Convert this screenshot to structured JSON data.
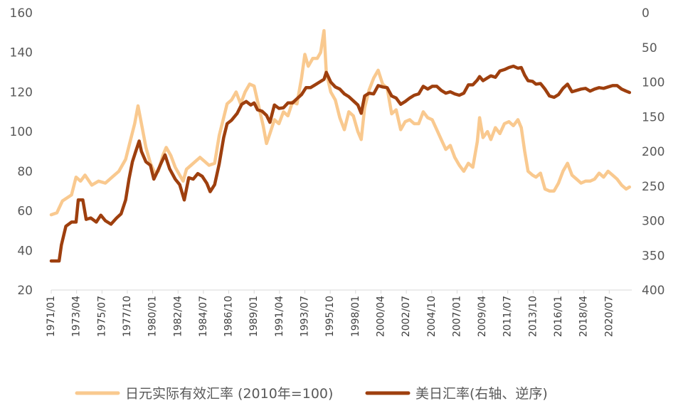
{
  "chart_data": {
    "type": "line",
    "title": "",
    "xlabel": "",
    "ylabel": "",
    "y2label": "",
    "ylim": [
      20,
      160
    ],
    "y2lim": [
      0,
      400
    ],
    "y2_inverted": true,
    "yticks": [
      "160",
      "140",
      "120",
      "100",
      "80",
      "60",
      "40",
      "20"
    ],
    "y2ticks": [
      "0",
      "50",
      "100",
      "150",
      "200",
      "250",
      "300",
      "350",
      "400"
    ],
    "xlim": [
      1971.0,
      2022.5
    ],
    "xtick_labels": [
      "1971/01",
      "1973/04",
      "1975/07",
      "1977/10",
      "1980/01",
      "1982/04",
      "1984/07",
      "1986/10",
      "1989/01",
      "1991/04",
      "1993/07",
      "1995/10",
      "1998/01",
      "2000/04",
      "2002/07",
      "2004/10",
      "2007/01",
      "2009/04",
      "2011/07",
      "2013/10",
      "2016/01",
      "2018/04",
      "2020/07"
    ],
    "grid": false,
    "legend_position": "bottom",
    "series": [
      {
        "name": "日元实际有效汇率 (2010年=100)",
        "axis": "left",
        "color": "#F9C98F",
        "points": [
          [
            1971.0,
            58
          ],
          [
            1971.5,
            59
          ],
          [
            1972.0,
            65
          ],
          [
            1972.8,
            68
          ],
          [
            1973.2,
            77
          ],
          [
            1973.6,
            75
          ],
          [
            1974.0,
            78
          ],
          [
            1974.6,
            73
          ],
          [
            1975.2,
            75
          ],
          [
            1975.8,
            74
          ],
          [
            1976.4,
            77
          ],
          [
            1977.0,
            80
          ],
          [
            1977.6,
            86
          ],
          [
            1978.0,
            95
          ],
          [
            1978.4,
            104
          ],
          [
            1978.7,
            113
          ],
          [
            1979.0,
            104
          ],
          [
            1979.4,
            92
          ],
          [
            1979.8,
            84
          ],
          [
            1980.2,
            79
          ],
          [
            1980.5,
            80
          ],
          [
            1980.9,
            88
          ],
          [
            1981.2,
            92
          ],
          [
            1981.6,
            88
          ],
          [
            1982.0,
            82
          ],
          [
            1982.4,
            78
          ],
          [
            1982.7,
            75
          ],
          [
            1983.0,
            81
          ],
          [
            1983.4,
            83
          ],
          [
            1983.8,
            85
          ],
          [
            1984.2,
            87
          ],
          [
            1984.6,
            85
          ],
          [
            1985.0,
            83
          ],
          [
            1985.5,
            84
          ],
          [
            1985.9,
            98
          ],
          [
            1986.3,
            107
          ],
          [
            1986.6,
            114
          ],
          [
            1987.0,
            116
          ],
          [
            1987.4,
            120
          ],
          [
            1987.8,
            114
          ],
          [
            1988.2,
            120
          ],
          [
            1988.6,
            124
          ],
          [
            1989.0,
            123
          ],
          [
            1989.4,
            113
          ],
          [
            1989.8,
            103
          ],
          [
            1990.1,
            94
          ],
          [
            1990.4,
            99
          ],
          [
            1990.8,
            106
          ],
          [
            1991.2,
            104
          ],
          [
            1991.6,
            110
          ],
          [
            1992.0,
            108
          ],
          [
            1992.4,
            115
          ],
          [
            1992.8,
            114
          ],
          [
            1993.2,
            127
          ],
          [
            1993.5,
            139
          ],
          [
            1993.8,
            133
          ],
          [
            1994.2,
            137
          ],
          [
            1994.6,
            137
          ],
          [
            1994.9,
            140
          ],
          [
            1995.2,
            151
          ],
          [
            1995.4,
            130
          ],
          [
            1995.8,
            120
          ],
          [
            1996.2,
            116
          ],
          [
            1996.6,
            107
          ],
          [
            1997.0,
            101
          ],
          [
            1997.4,
            110
          ],
          [
            1997.8,
            108
          ],
          [
            1998.2,
            100
          ],
          [
            1998.5,
            96
          ],
          [
            1998.8,
            112
          ],
          [
            1999.2,
            121
          ],
          [
            1999.6,
            127
          ],
          [
            2000.0,
            131
          ],
          [
            2000.4,
            124
          ],
          [
            2000.8,
            122
          ],
          [
            2001.2,
            109
          ],
          [
            2001.6,
            111
          ],
          [
            2002.0,
            101
          ],
          [
            2002.4,
            105
          ],
          [
            2002.8,
            106
          ],
          [
            2003.2,
            104
          ],
          [
            2003.6,
            104
          ],
          [
            2004.0,
            110
          ],
          [
            2004.4,
            107
          ],
          [
            2004.8,
            106
          ],
          [
            2005.2,
            101
          ],
          [
            2005.6,
            96
          ],
          [
            2006.0,
            91
          ],
          [
            2006.4,
            93
          ],
          [
            2006.8,
            87
          ],
          [
            2007.2,
            83
          ],
          [
            2007.6,
            80
          ],
          [
            2008.0,
            84
          ],
          [
            2008.4,
            82
          ],
          [
            2008.8,
            95
          ],
          [
            2009.0,
            107
          ],
          [
            2009.3,
            97
          ],
          [
            2009.7,
            100
          ],
          [
            2010.0,
            96
          ],
          [
            2010.4,
            102
          ],
          [
            2010.8,
            99
          ],
          [
            2011.2,
            104
          ],
          [
            2011.6,
            105
          ],
          [
            2012.0,
            103
          ],
          [
            2012.4,
            106
          ],
          [
            2012.7,
            102
          ],
          [
            2013.0,
            90
          ],
          [
            2013.3,
            80
          ],
          [
            2013.7,
            78
          ],
          [
            2014.0,
            77
          ],
          [
            2014.4,
            79
          ],
          [
            2014.8,
            71
          ],
          [
            2015.2,
            70
          ],
          [
            2015.6,
            70
          ],
          [
            2016.0,
            74
          ],
          [
            2016.4,
            80
          ],
          [
            2016.8,
            84
          ],
          [
            2017.2,
            78
          ],
          [
            2017.6,
            76
          ],
          [
            2018.0,
            74
          ],
          [
            2018.4,
            75
          ],
          [
            2018.8,
            75
          ],
          [
            2019.2,
            76
          ],
          [
            2019.6,
            79
          ],
          [
            2020.0,
            77
          ],
          [
            2020.4,
            80
          ],
          [
            2020.8,
            78
          ],
          [
            2021.2,
            76
          ],
          [
            2021.6,
            73
          ],
          [
            2022.0,
            71
          ],
          [
            2022.3,
            72
          ]
        ]
      },
      {
        "name": "美日汇率(右轴、逆序)",
        "axis": "right",
        "color": "#9E3F0E",
        "points": [
          [
            1971.0,
            358
          ],
          [
            1971.7,
            358
          ],
          [
            1971.9,
            335
          ],
          [
            1972.3,
            308
          ],
          [
            1972.8,
            302
          ],
          [
            1973.2,
            302
          ],
          [
            1973.4,
            270
          ],
          [
            1973.8,
            270
          ],
          [
            1974.1,
            298
          ],
          [
            1974.5,
            296
          ],
          [
            1975.0,
            302
          ],
          [
            1975.4,
            292
          ],
          [
            1975.8,
            300
          ],
          [
            1976.3,
            305
          ],
          [
            1976.8,
            296
          ],
          [
            1977.2,
            290
          ],
          [
            1977.6,
            270
          ],
          [
            1977.9,
            240
          ],
          [
            1978.2,
            215
          ],
          [
            1978.5,
            200
          ],
          [
            1978.8,
            185
          ],
          [
            1979.0,
            200
          ],
          [
            1979.4,
            215
          ],
          [
            1979.8,
            220
          ],
          [
            1980.1,
            240
          ],
          [
            1980.4,
            230
          ],
          [
            1980.8,
            215
          ],
          [
            1981.1,
            205
          ],
          [
            1981.5,
            225
          ],
          [
            1982.0,
            240
          ],
          [
            1982.4,
            248
          ],
          [
            1982.8,
            270
          ],
          [
            1983.2,
            238
          ],
          [
            1983.6,
            240
          ],
          [
            1984.0,
            232
          ],
          [
            1984.4,
            236
          ],
          [
            1984.8,
            246
          ],
          [
            1985.1,
            258
          ],
          [
            1985.5,
            248
          ],
          [
            1985.9,
            218
          ],
          [
            1986.3,
            180
          ],
          [
            1986.6,
            160
          ],
          [
            1987.0,
            155
          ],
          [
            1987.5,
            145
          ],
          [
            1987.9,
            132
          ],
          [
            1988.3,
            128
          ],
          [
            1988.7,
            133
          ],
          [
            1989.0,
            130
          ],
          [
            1989.3,
            140
          ],
          [
            1989.7,
            142
          ],
          [
            1990.1,
            148
          ],
          [
            1990.4,
            158
          ],
          [
            1990.8,
            133
          ],
          [
            1991.2,
            138
          ],
          [
            1991.6,
            137
          ],
          [
            1992.0,
            130
          ],
          [
            1992.4,
            130
          ],
          [
            1992.8,
            124
          ],
          [
            1993.2,
            118
          ],
          [
            1993.6,
            108
          ],
          [
            1994.0,
            108
          ],
          [
            1994.4,
            104
          ],
          [
            1994.8,
            100
          ],
          [
            1995.2,
            96
          ],
          [
            1995.4,
            86
          ],
          [
            1995.8,
            100
          ],
          [
            1996.2,
            107
          ],
          [
            1996.6,
            110
          ],
          [
            1997.0,
            117
          ],
          [
            1997.4,
            121
          ],
          [
            1997.8,
            127
          ],
          [
            1998.2,
            133
          ],
          [
            1998.5,
            145
          ],
          [
            1998.8,
            120
          ],
          [
            1999.2,
            116
          ],
          [
            1999.6,
            117
          ],
          [
            2000.0,
            105
          ],
          [
            2000.4,
            107
          ],
          [
            2000.8,
            108
          ],
          [
            2001.2,
            120
          ],
          [
            2001.6,
            123
          ],
          [
            2002.0,
            132
          ],
          [
            2002.4,
            128
          ],
          [
            2002.8,
            123
          ],
          [
            2003.2,
            119
          ],
          [
            2003.6,
            117
          ],
          [
            2004.0,
            106
          ],
          [
            2004.4,
            110
          ],
          [
            2004.8,
            106
          ],
          [
            2005.2,
            106
          ],
          [
            2005.6,
            112
          ],
          [
            2006.0,
            116
          ],
          [
            2006.4,
            114
          ],
          [
            2006.8,
            117
          ],
          [
            2007.2,
            119
          ],
          [
            2007.6,
            116
          ],
          [
            2008.0,
            104
          ],
          [
            2008.4,
            104
          ],
          [
            2008.8,
            97
          ],
          [
            2009.0,
            92
          ],
          [
            2009.3,
            98
          ],
          [
            2009.7,
            94
          ],
          [
            2010.0,
            91
          ],
          [
            2010.4,
            93
          ],
          [
            2010.8,
            84
          ],
          [
            2011.2,
            82
          ],
          [
            2011.6,
            79
          ],
          [
            2012.0,
            77
          ],
          [
            2012.4,
            80
          ],
          [
            2012.7,
            79
          ],
          [
            2013.0,
            90
          ],
          [
            2013.3,
            98
          ],
          [
            2013.7,
            99
          ],
          [
            2014.0,
            103
          ],
          [
            2014.4,
            102
          ],
          [
            2014.8,
            110
          ],
          [
            2015.2,
            120
          ],
          [
            2015.6,
            122
          ],
          [
            2016.0,
            118
          ],
          [
            2016.4,
            109
          ],
          [
            2016.8,
            103
          ],
          [
            2017.2,
            114
          ],
          [
            2017.6,
            112
          ],
          [
            2018.0,
            110
          ],
          [
            2018.4,
            109
          ],
          [
            2018.8,
            113
          ],
          [
            2019.2,
            110
          ],
          [
            2019.6,
            108
          ],
          [
            2020.0,
            109
          ],
          [
            2020.4,
            107
          ],
          [
            2020.8,
            105
          ],
          [
            2021.2,
            105
          ],
          [
            2021.6,
            110
          ],
          [
            2022.0,
            113
          ],
          [
            2022.3,
            115
          ]
        ]
      }
    ]
  }
}
